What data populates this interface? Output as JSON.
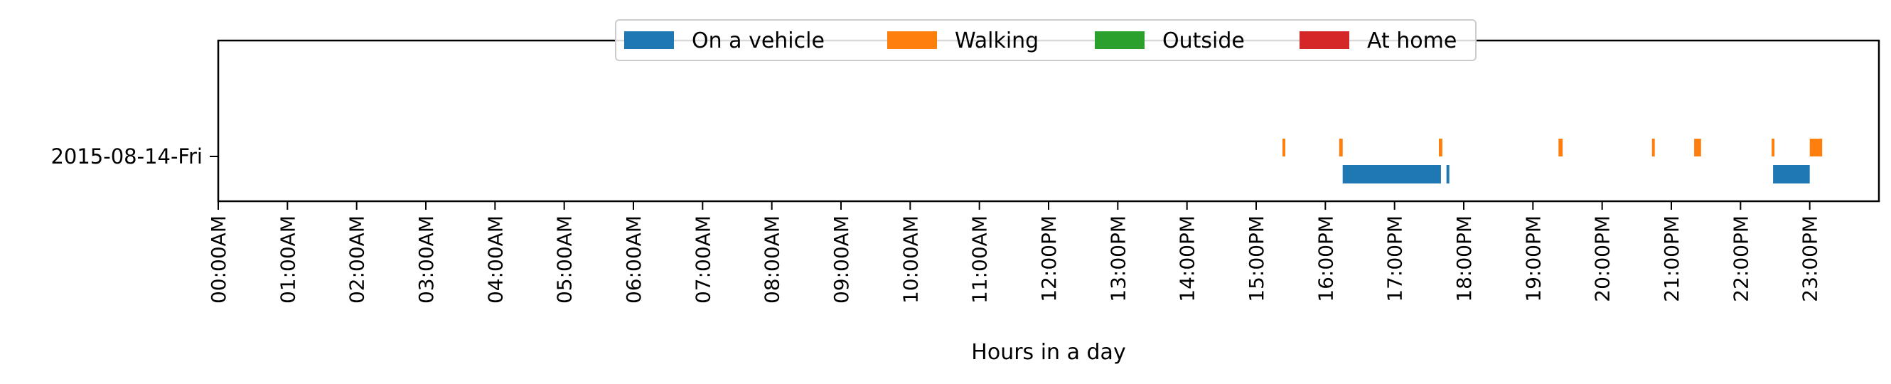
{
  "chart_data": {
    "type": "timeline",
    "title": "",
    "xlabel": "Hours in a day",
    "ylabel": "",
    "xlim": [
      0,
      24
    ],
    "x_ticks": [
      0,
      1,
      2,
      3,
      4,
      5,
      6,
      7,
      8,
      9,
      10,
      11,
      12,
      13,
      14,
      15,
      16,
      17,
      18,
      19,
      20,
      21,
      22,
      23
    ],
    "x_tick_labels": [
      "00:00AM",
      "01:00AM",
      "02:00AM",
      "03:00AM",
      "04:00AM",
      "05:00AM",
      "06:00AM",
      "07:00AM",
      "08:00AM",
      "09:00AM",
      "10:00AM",
      "11:00AM",
      "12:00PM",
      "13:00PM",
      "14:00PM",
      "15:00PM",
      "16:00PM",
      "17:00PM",
      "18:00PM",
      "19:00PM",
      "20:00PM",
      "21:00PM",
      "22:00PM",
      "23:00PM"
    ],
    "rows": [
      "2015-08-14-Fri"
    ],
    "grid": false,
    "legend_position": "top-center",
    "series": [
      {
        "name": "On a vehicle",
        "color": "#1f77b4",
        "lane": "lower",
        "intervals": [
          [
            16.25,
            17.67
          ],
          [
            17.75,
            17.78
          ],
          [
            22.47,
            23.0
          ]
        ]
      },
      {
        "name": "Walking",
        "color": "#ff7f0e",
        "lane": "upper",
        "intervals": [
          [
            15.38,
            15.42
          ],
          [
            16.2,
            16.25
          ],
          [
            17.64,
            17.69
          ],
          [
            19.37,
            19.43
          ],
          [
            20.72,
            20.76
          ],
          [
            21.33,
            21.43
          ],
          [
            22.45,
            22.48
          ],
          [
            23.0,
            23.18
          ]
        ]
      },
      {
        "name": "Outside",
        "color": "#2ca02c",
        "lane": "upper",
        "intervals": []
      },
      {
        "name": "At home",
        "color": "#d62728",
        "lane": "lower",
        "intervals": []
      }
    ]
  }
}
